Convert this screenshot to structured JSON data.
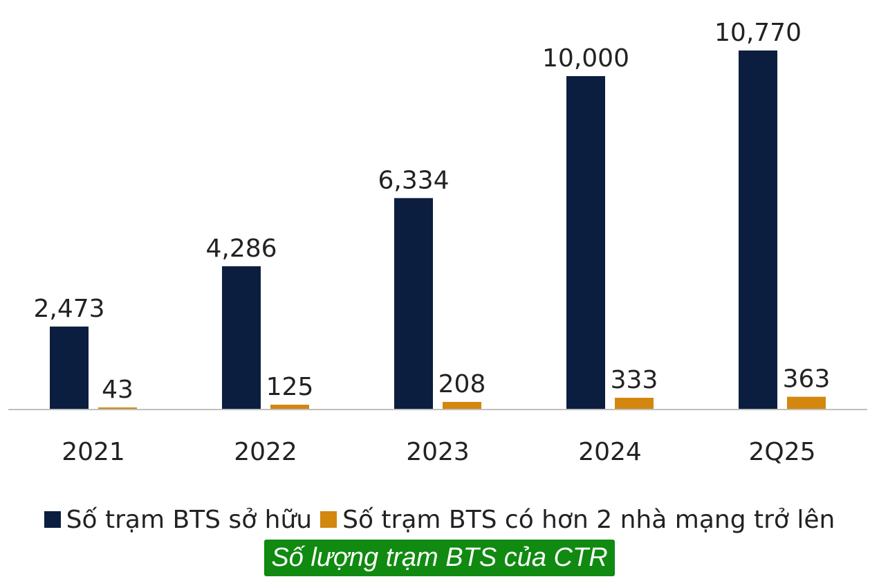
{
  "chart_data": {
    "type": "bar",
    "categories": [
      "2021",
      "2022",
      "2023",
      "2024",
      "2Q25"
    ],
    "series": [
      {
        "name": "Số trạm BTS sở hữu",
        "values": [
          2473,
          4286,
          6334,
          10000,
          10770
        ],
        "labels": [
          "2,473",
          "4,286",
          "6,334",
          "10,000",
          "10,770"
        ],
        "color": "#0b1e3f"
      },
      {
        "name": "Số trạm BTS có hơn 2 nhà mạng trở lên",
        "values": [
          43,
          125,
          208,
          333,
          363
        ],
        "labels": [
          "43",
          "125",
          "208",
          "333",
          "363"
        ],
        "color": "#d3870f"
      }
    ],
    "ylim": [
      0,
      10770
    ],
    "grid": false,
    "legend_position": "bottom",
    "title": ""
  },
  "caption": "Số lượng trạm BTS của CTR"
}
